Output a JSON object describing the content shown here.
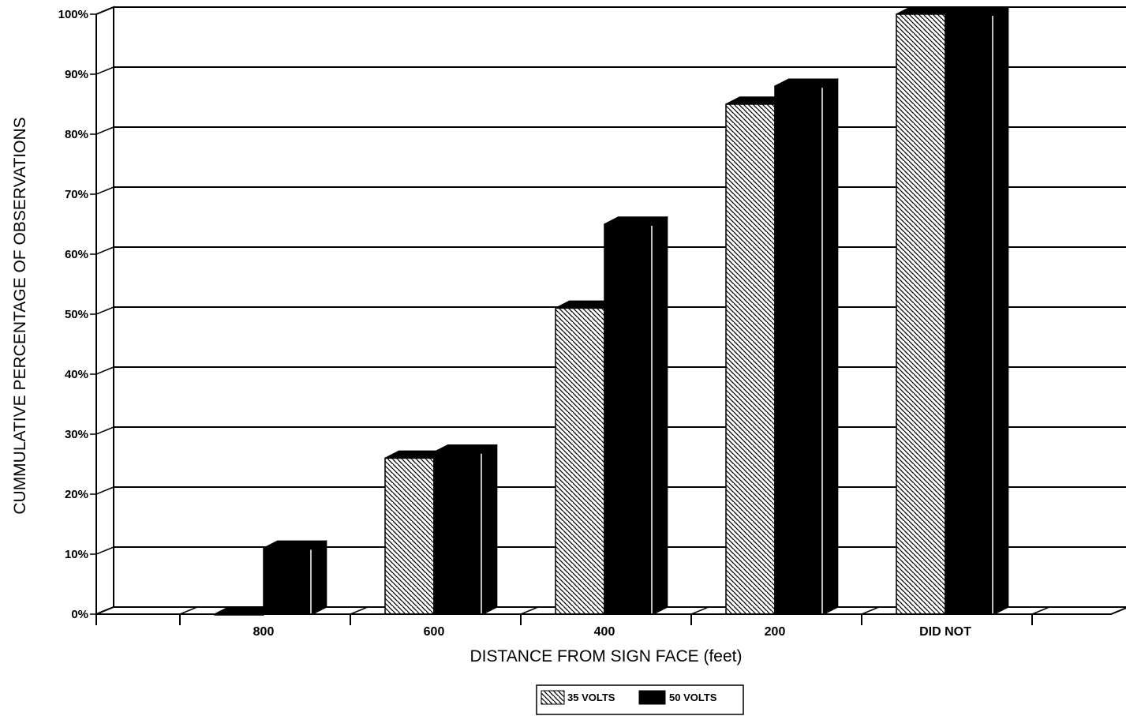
{
  "chart_data": {
    "type": "bar",
    "title": "",
    "xlabel": "DISTANCE FROM SIGN FACE (feet)",
    "ylabel": "CUMMULATIVE PERCENTAGE OF OBSERVATIONS",
    "categories": [
      "800",
      "600",
      "400",
      "200",
      "DID NOT"
    ],
    "series": [
      {
        "name": "35 VOLTS",
        "values": [
          0,
          26,
          51,
          85,
          100
        ]
      },
      {
        "name": "50 VOLTS",
        "values": [
          11,
          27,
          65,
          88,
          100
        ]
      }
    ],
    "ylim": [
      0,
      100
    ],
    "yticks": [
      "0%",
      "10%",
      "20%",
      "30%",
      "40%",
      "50%",
      "60%",
      "70%",
      "80%",
      "90%",
      "100%"
    ],
    "grid": true,
    "legend": "bottom-center",
    "style": "3d",
    "colors": {
      "series1": "hatched",
      "series2": "#000000"
    }
  }
}
